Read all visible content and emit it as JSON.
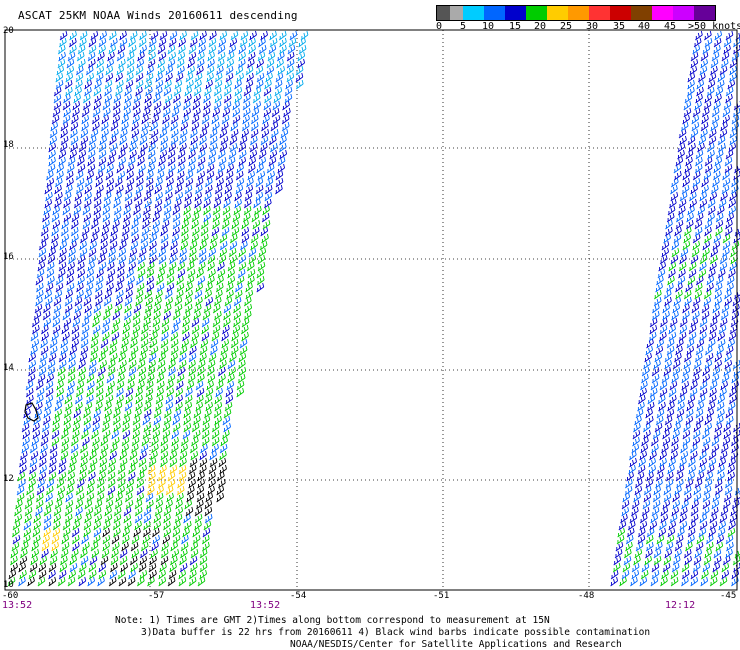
{
  "title": "ASCAT 25KM NOAA Winds 20160611 descending",
  "legend": {
    "labels": [
      "0",
      "5",
      "10",
      "15",
      "20",
      "25",
      "30",
      "35",
      "40",
      "45",
      ">50 knots"
    ],
    "colors": [
      "#555555",
      "#aaaaaa",
      "#00ccff",
      "#0066ff",
      "#0000cc",
      "#00cc00",
      "#ffcc00",
      "#ff9900",
      "#ff3333",
      "#cc0000",
      "#804000",
      "#ff00ff",
      "#cc00ff",
      "#660099"
    ]
  },
  "lat_labels": [
    "20",
    "18",
    "16",
    "14",
    "12",
    "10"
  ],
  "lon_labels": [
    "-60",
    "-57",
    "-54",
    "-51",
    "-48",
    "-45"
  ],
  "pass_times": [
    "13:52",
    "13:52",
    "12:12"
  ],
  "footer": {
    "line1": "Note: 1) Times are GMT 2)Times along bottom correspond to measurement at 15N",
    "line2": "3)Data buffer is 22 hrs from 20160611 4) Black wind barbs indicate possible contamination",
    "line3": "NOAA/NESDIS/Center for Satellite Applications and Research"
  }
}
